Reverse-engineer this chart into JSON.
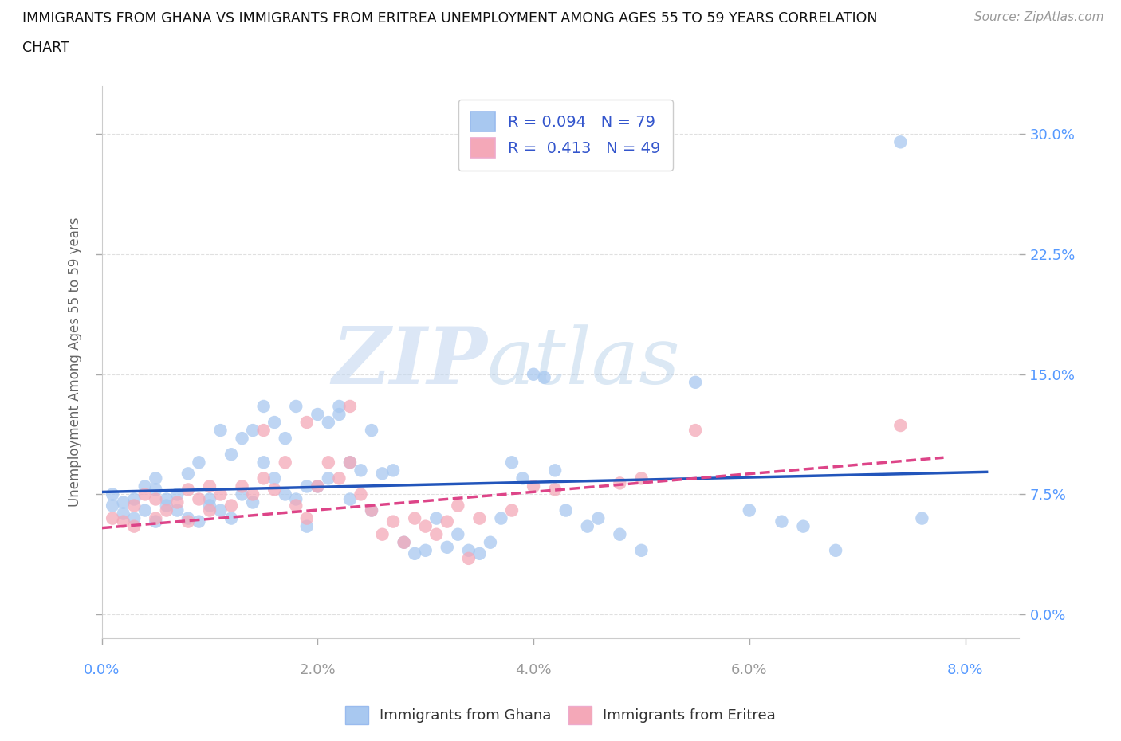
{
  "title_line1": "IMMIGRANTS FROM GHANA VS IMMIGRANTS FROM ERITREA UNEMPLOYMENT AMONG AGES 55 TO 59 YEARS CORRELATION",
  "title_line2": "CHART",
  "source": "Source: ZipAtlas.com",
  "xlabel_values": [
    0.0,
    0.02,
    0.04,
    0.06,
    0.08
  ],
  "ylabel_values": [
    0.0,
    0.075,
    0.15,
    0.225,
    0.3
  ],
  "ylabel_label": "Unemployment Among Ages 55 to 59 years",
  "ghana_color": "#a8c8f0",
  "eritrea_color": "#f4a8b8",
  "ghana_R": 0.094,
  "ghana_N": 79,
  "eritrea_R": 0.413,
  "eritrea_N": 49,
  "legend_ghana_label": "Immigrants from Ghana",
  "legend_eritrea_label": "Immigrants from Eritrea",
  "ghana_scatter_x": [
    0.001,
    0.001,
    0.002,
    0.002,
    0.003,
    0.003,
    0.004,
    0.004,
    0.005,
    0.005,
    0.005,
    0.006,
    0.006,
    0.007,
    0.007,
    0.008,
    0.008,
    0.009,
    0.009,
    0.01,
    0.01,
    0.011,
    0.011,
    0.012,
    0.012,
    0.013,
    0.013,
    0.014,
    0.014,
    0.015,
    0.015,
    0.016,
    0.016,
    0.017,
    0.017,
    0.018,
    0.018,
    0.019,
    0.019,
    0.02,
    0.02,
    0.021,
    0.021,
    0.022,
    0.022,
    0.023,
    0.023,
    0.024,
    0.025,
    0.025,
    0.026,
    0.027,
    0.028,
    0.029,
    0.03,
    0.031,
    0.032,
    0.033,
    0.034,
    0.035,
    0.036,
    0.037,
    0.038,
    0.039,
    0.04,
    0.041,
    0.042,
    0.043,
    0.045,
    0.046,
    0.048,
    0.05,
    0.055,
    0.06,
    0.063,
    0.065,
    0.068,
    0.074,
    0.076
  ],
  "ghana_scatter_y": [
    0.068,
    0.075,
    0.07,
    0.063,
    0.072,
    0.06,
    0.08,
    0.065,
    0.078,
    0.058,
    0.085,
    0.068,
    0.072,
    0.065,
    0.075,
    0.088,
    0.06,
    0.095,
    0.058,
    0.072,
    0.068,
    0.115,
    0.065,
    0.1,
    0.06,
    0.11,
    0.075,
    0.115,
    0.07,
    0.095,
    0.13,
    0.085,
    0.12,
    0.075,
    0.11,
    0.13,
    0.072,
    0.08,
    0.055,
    0.125,
    0.08,
    0.12,
    0.085,
    0.125,
    0.13,
    0.072,
    0.095,
    0.09,
    0.065,
    0.115,
    0.088,
    0.09,
    0.045,
    0.038,
    0.04,
    0.06,
    0.042,
    0.05,
    0.04,
    0.038,
    0.045,
    0.06,
    0.095,
    0.085,
    0.15,
    0.148,
    0.09,
    0.065,
    0.055,
    0.06,
    0.05,
    0.04,
    0.145,
    0.065,
    0.058,
    0.055,
    0.04,
    0.295,
    0.06
  ],
  "eritrea_scatter_x": [
    0.001,
    0.002,
    0.003,
    0.003,
    0.004,
    0.005,
    0.005,
    0.006,
    0.007,
    0.008,
    0.008,
    0.009,
    0.01,
    0.01,
    0.011,
    0.012,
    0.013,
    0.014,
    0.015,
    0.015,
    0.016,
    0.017,
    0.018,
    0.019,
    0.019,
    0.02,
    0.021,
    0.022,
    0.023,
    0.023,
    0.024,
    0.025,
    0.026,
    0.027,
    0.028,
    0.029,
    0.03,
    0.031,
    0.032,
    0.033,
    0.034,
    0.035,
    0.038,
    0.04,
    0.042,
    0.048,
    0.05,
    0.055,
    0.074
  ],
  "eritrea_scatter_y": [
    0.06,
    0.058,
    0.068,
    0.055,
    0.075,
    0.06,
    0.072,
    0.065,
    0.07,
    0.058,
    0.078,
    0.072,
    0.065,
    0.08,
    0.075,
    0.068,
    0.08,
    0.075,
    0.085,
    0.115,
    0.078,
    0.095,
    0.068,
    0.06,
    0.12,
    0.08,
    0.095,
    0.085,
    0.095,
    0.13,
    0.075,
    0.065,
    0.05,
    0.058,
    0.045,
    0.06,
    0.055,
    0.05,
    0.058,
    0.068,
    0.035,
    0.06,
    0.065,
    0.08,
    0.078,
    0.082,
    0.085,
    0.115,
    0.118
  ],
  "watermark_zip": "ZIP",
  "watermark_atlas": "atlas",
  "background_color": "#ffffff",
  "grid_color": "#e0e0e0",
  "axis_label_color": "#5599ff",
  "trendline_ghana_color": "#2255bb",
  "trendline_eritrea_color": "#dd4488",
  "xlim": [
    0.0,
    0.085
  ],
  "ylim": [
    -0.015,
    0.33
  ],
  "xaxis_bottom_label_color": "#4477cc",
  "xaxis_right_label_color": "#4477cc"
}
